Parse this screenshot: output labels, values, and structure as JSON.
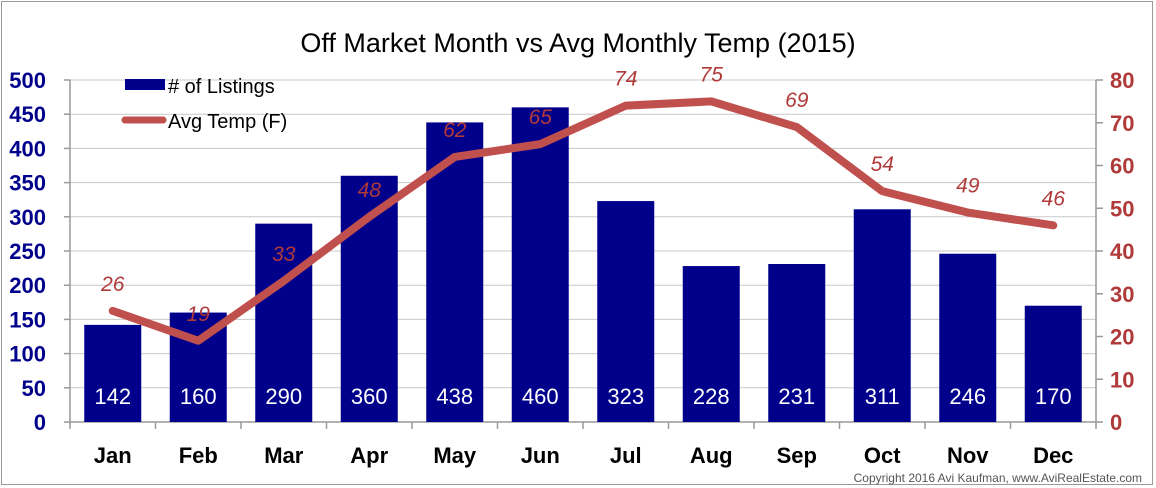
{
  "chart_data": {
    "type": "bar+line",
    "title": "Off Market Month vs Avg Monthly Temp (2015)",
    "categories": [
      "Jan",
      "Feb",
      "Mar",
      "Apr",
      "May",
      "Jun",
      "Jul",
      "Aug",
      "Sep",
      "Oct",
      "Nov",
      "Dec"
    ],
    "series": [
      {
        "name": "# of Listings",
        "type": "bar",
        "axis": "left",
        "color": "#00008B",
        "values": [
          142,
          160,
          290,
          360,
          438,
          460,
          323,
          228,
          231,
          311,
          246,
          170
        ]
      },
      {
        "name": "Avg Temp (F)",
        "type": "line",
        "axis": "right",
        "color": "#C0504D",
        "values": [
          26,
          19,
          33,
          48,
          62,
          65,
          74,
          75,
          69,
          54,
          49,
          46
        ]
      }
    ],
    "left_axis": {
      "ylim": [
        0,
        500
      ],
      "ticks": [
        0,
        50,
        100,
        150,
        200,
        250,
        300,
        350,
        400,
        450,
        500
      ],
      "color": "#00008B"
    },
    "right_axis": {
      "ylim": [
        0,
        80
      ],
      "ticks": [
        0,
        10,
        20,
        30,
        40,
        50,
        60,
        70,
        80
      ],
      "color": "#B03A3A"
    },
    "grid": true,
    "legend_position": "top-left",
    "annotation": "Copyright 2016 Avi Kaufman, www.AviRealEstate.com"
  }
}
